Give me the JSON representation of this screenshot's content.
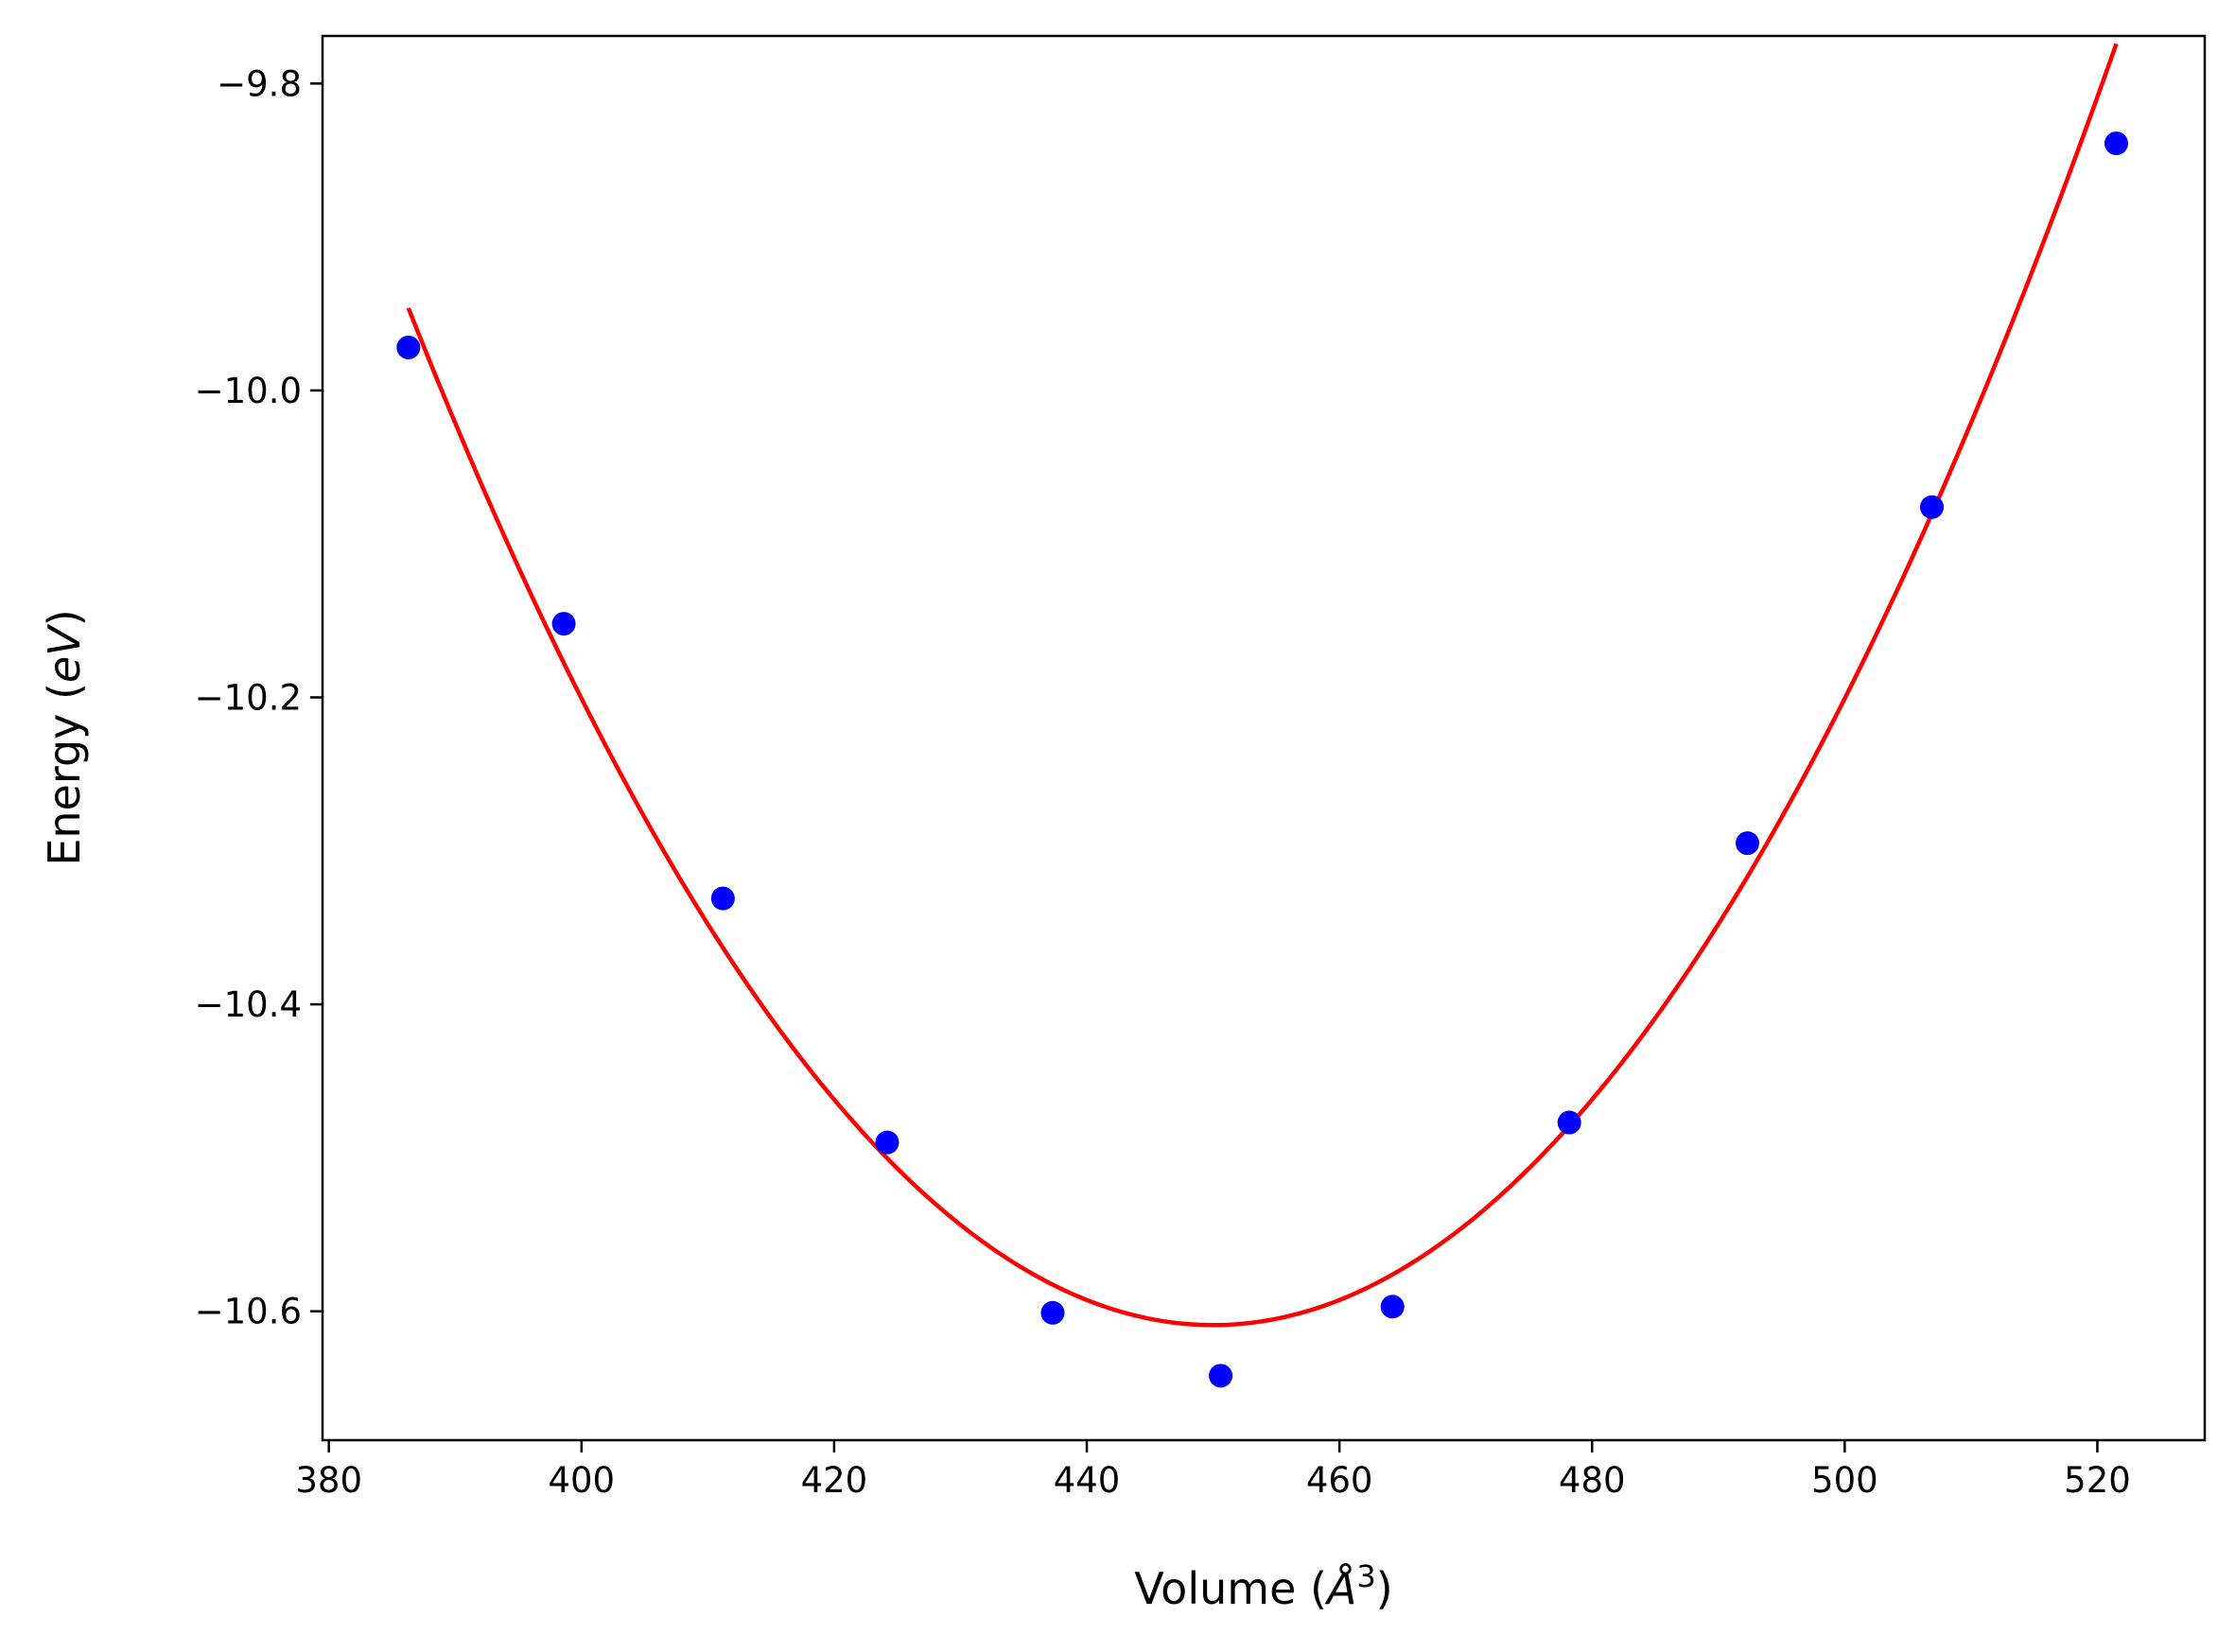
{
  "chart_data": {
    "type": "scatter",
    "xlabel": "Volume (Å³)",
    "xlabel_parts": {
      "prefix": "Volume (",
      "unit_letter": "Å",
      "unit_power": "3",
      "suffix": ")"
    },
    "ylabel": "Energy (eV)",
    "ylabel_parts": {
      "prefix": "Energy (",
      "unit": "eV",
      "suffix": ")"
    },
    "xlim": [
      379.5,
      528.5
    ],
    "ylim": [
      -10.684,
      -9.769
    ],
    "x_ticks": [
      380,
      400,
      420,
      440,
      460,
      480,
      500,
      520
    ],
    "x_tick_labels": [
      "380",
      "400",
      "420",
      "440",
      "460",
      "480",
      "500",
      "520"
    ],
    "y_ticks": [
      -9.8,
      -10.0,
      -10.2,
      -10.4,
      -10.6
    ],
    "y_tick_labels": [
      "−9.8",
      "−10.0",
      "−10.2",
      "−10.4",
      "−10.6"
    ],
    "grid": false,
    "series": [
      {
        "kind": "points",
        "color": "#0000ff",
        "x": [
          386.3,
          398.6,
          411.2,
          424.2,
          437.3,
          450.6,
          464.2,
          478.2,
          492.3,
          506.9,
          521.5
        ],
        "y": [
          -9.972,
          -10.152,
          -10.331,
          -10.49,
          -10.601,
          -10.642,
          -10.597,
          -10.477,
          -10.295,
          -10.076,
          -9.839
        ]
      },
      {
        "kind": "fit",
        "color": "#ff0000",
        "x_range": [
          386.3,
          521.5
        ],
        "quadratic": {
          "x_min": 450.0,
          "y_min": -10.609,
          "curvature": 0.0001633
        }
      }
    ]
  }
}
